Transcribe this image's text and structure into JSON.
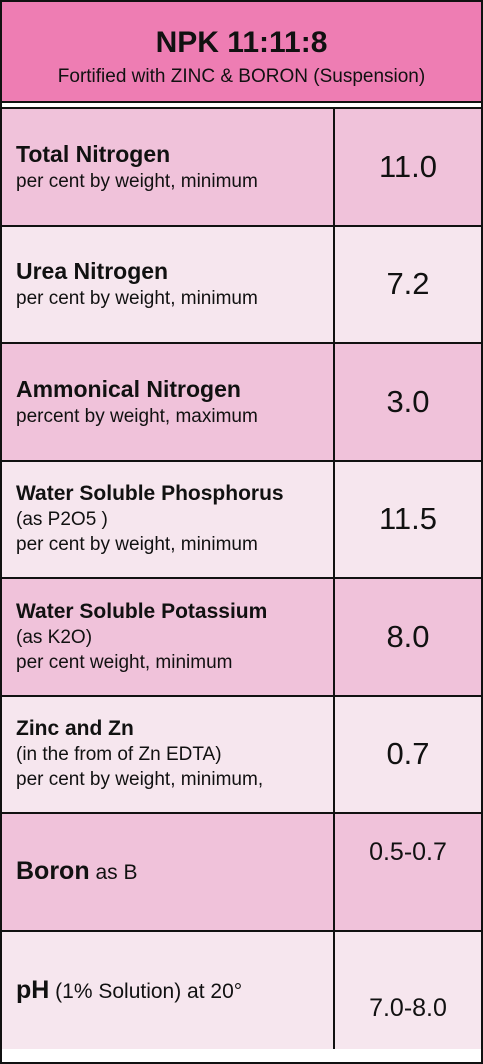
{
  "header": {
    "title": "NPK 11:11:8",
    "subtitle": "Fortified with ZINC & BORON (Suspension)"
  },
  "table": {
    "rows": [
      {
        "name": "Total Nitrogen",
        "lines": [
          "per cent by weight, minimum"
        ],
        "value": "11.0"
      },
      {
        "name": "Urea Nitrogen",
        "lines": [
          "per cent by weight, minimum"
        ],
        "value": "7.2"
      },
      {
        "name": "Ammonical Nitrogen",
        "lines": [
          "percent by weight, maximum"
        ],
        "value": "3.0"
      },
      {
        "name": "Water Soluble Phosphorus",
        "lines": [
          "(as P2O5 )",
          "per cent by weight, minimum"
        ],
        "value": "11.5"
      },
      {
        "name": "Water Soluble Potassium",
        "lines": [
          "(as K2O)",
          "per cent weight, minimum"
        ],
        "value": "8.0"
      },
      {
        "name": "Zinc and Zn",
        "lines": [
          "(in the from of Zn EDTA)",
          "per cent by weight, minimum,"
        ],
        "value": "0.7"
      },
      {
        "name": "Boron",
        "suffix": " as B",
        "lines": [],
        "value": "0.5-0.7"
      },
      {
        "name": "pH",
        "suffix": " (1% Solution) at 20°",
        "lines": [],
        "value": "7.0-8.0"
      }
    ]
  }
}
